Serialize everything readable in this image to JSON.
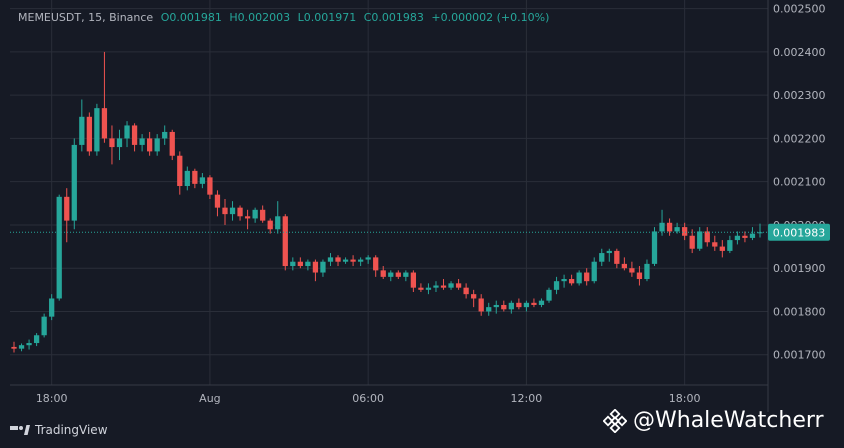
{
  "legend": {
    "symbol": "MEMEUSDT, 15, Binance",
    "open": "O0.001981",
    "high": "H0.002003",
    "low": "L0.001971",
    "close": "C0.001983",
    "change": "+0.000002 (+0.10%)"
  },
  "branding": {
    "tradingview": "TradingView",
    "watermark": "@WhaleWatcherr",
    "watermark_icon": "binance-icon"
  },
  "colors": {
    "background": "#161A25",
    "up": "#26A69A",
    "down": "#EF5350",
    "grid": "#2A2E39",
    "text": "#B2B5BE",
    "price_label_bg": "#26A69A"
  },
  "chart_data": {
    "type": "candlestick",
    "x_ticks": [
      "18:00",
      "Aug",
      "06:00",
      "12:00",
      "18:00"
    ],
    "y_ticks": [
      "0.002500",
      "0.002400",
      "0.002300",
      "0.002200",
      "0.002100",
      "0.002000",
      "0.001900",
      "0.001800",
      "0.001700"
    ],
    "ylim": [
      0.00163,
      0.00252
    ],
    "last_price": "0.001983",
    "last_price_value": 0.001983,
    "grid": true,
    "candles": [
      [
        0.001718,
        0.00173,
        0.001705,
        0.001714
      ],
      [
        0.001714,
        0.001726,
        0.001708,
        0.001722
      ],
      [
        0.001722,
        0.001735,
        0.001712,
        0.001727
      ],
      [
        0.001727,
        0.00175,
        0.00172,
        0.001745
      ],
      [
        0.001745,
        0.001795,
        0.00174,
        0.001788
      ],
      [
        0.001788,
        0.00184,
        0.00178,
        0.00183
      ],
      [
        0.00183,
        0.00207,
        0.001825,
        0.002065
      ],
      [
        0.002065,
        0.002085,
        0.00196,
        0.00201
      ],
      [
        0.00201,
        0.0022,
        0.00199,
        0.002185
      ],
      [
        0.002185,
        0.00229,
        0.00217,
        0.00225
      ],
      [
        0.00225,
        0.00226,
        0.00216,
        0.00217
      ],
      [
        0.00217,
        0.00228,
        0.00216,
        0.00227
      ],
      [
        0.00227,
        0.0024,
        0.00219,
        0.0022
      ],
      [
        0.0022,
        0.00223,
        0.00214,
        0.00218
      ],
      [
        0.00218,
        0.00222,
        0.00215,
        0.0022
      ],
      [
        0.0022,
        0.00224,
        0.00218,
        0.00223
      ],
      [
        0.00223,
        0.002235,
        0.00217,
        0.002185
      ],
      [
        0.002185,
        0.00221,
        0.00217,
        0.0022
      ],
      [
        0.0022,
        0.002215,
        0.00216,
        0.00217
      ],
      [
        0.00217,
        0.00221,
        0.00216,
        0.0022
      ],
      [
        0.0022,
        0.00223,
        0.002185,
        0.002215
      ],
      [
        0.002215,
        0.00222,
        0.00215,
        0.00216
      ],
      [
        0.00216,
        0.00217,
        0.00207,
        0.00209
      ],
      [
        0.00209,
        0.002135,
        0.00208,
        0.002125
      ],
      [
        0.002125,
        0.00213,
        0.002085,
        0.002095
      ],
      [
        0.002095,
        0.00212,
        0.002085,
        0.00211
      ],
      [
        0.00211,
        0.002115,
        0.00206,
        0.00207
      ],
      [
        0.00207,
        0.00208,
        0.00202,
        0.00204
      ],
      [
        0.00204,
        0.00206,
        0.002,
        0.002025
      ],
      [
        0.002025,
        0.002055,
        0.00201,
        0.00204
      ],
      [
        0.00204,
        0.002045,
        0.00201,
        0.00202
      ],
      [
        0.00202,
        0.002035,
        0.00199,
        0.002015
      ],
      [
        0.002015,
        0.00204,
        0.002005,
        0.002035
      ],
      [
        0.002035,
        0.002045,
        0.002005,
        0.00201
      ],
      [
        0.00201,
        0.002015,
        0.00198,
        0.00199
      ],
      [
        0.00199,
        0.002055,
        0.00198,
        0.00202
      ],
      [
        0.00202,
        0.002025,
        0.001895,
        0.001905
      ],
      [
        0.001905,
        0.001925,
        0.001895,
        0.001915
      ],
      [
        0.001915,
        0.001925,
        0.0019,
        0.001905
      ],
      [
        0.001905,
        0.00192,
        0.001895,
        0.001915
      ],
      [
        0.001915,
        0.00192,
        0.00187,
        0.00189
      ],
      [
        0.00189,
        0.00192,
        0.00188,
        0.001915
      ],
      [
        0.001915,
        0.001935,
        0.001905,
        0.001925
      ],
      [
        0.001925,
        0.00193,
        0.001905,
        0.001915
      ],
      [
        0.001915,
        0.001925,
        0.00191,
        0.00192
      ],
      [
        0.00192,
        0.00193,
        0.001905,
        0.001915
      ],
      [
        0.001915,
        0.001925,
        0.001905,
        0.00192
      ],
      [
        0.00192,
        0.00193,
        0.00191,
        0.001925
      ],
      [
        0.001925,
        0.00193,
        0.00188,
        0.001895
      ],
      [
        0.001895,
        0.001905,
        0.001875,
        0.00188
      ],
      [
        0.00188,
        0.001895,
        0.00187,
        0.00189
      ],
      [
        0.00189,
        0.001895,
        0.001875,
        0.00188
      ],
      [
        0.00188,
        0.001895,
        0.00187,
        0.00189
      ],
      [
        0.00189,
        0.001895,
        0.001845,
        0.001855
      ],
      [
        0.001855,
        0.001865,
        0.001845,
        0.00185
      ],
      [
        0.00185,
        0.001865,
        0.00184,
        0.001855
      ],
      [
        0.001855,
        0.00187,
        0.001845,
        0.00186
      ],
      [
        0.00186,
        0.001875,
        0.00185,
        0.001855
      ],
      [
        0.001855,
        0.00187,
        0.00185,
        0.001865
      ],
      [
        0.001865,
        0.001875,
        0.00185,
        0.001855
      ],
      [
        0.001855,
        0.001865,
        0.00183,
        0.00184
      ],
      [
        0.00184,
        0.00185,
        0.00181,
        0.00183
      ],
      [
        0.00183,
        0.00184,
        0.00179,
        0.0018
      ],
      [
        0.0018,
        0.00182,
        0.00179,
        0.00181
      ],
      [
        0.00181,
        0.001825,
        0.001795,
        0.001815
      ],
      [
        0.001815,
        0.001825,
        0.0018,
        0.001805
      ],
      [
        0.001805,
        0.001825,
        0.001795,
        0.00182
      ],
      [
        0.00182,
        0.00183,
        0.001805,
        0.00181
      ],
      [
        0.00181,
        0.001825,
        0.0018,
        0.00182
      ],
      [
        0.00182,
        0.00183,
        0.00181,
        0.001815
      ],
      [
        0.001815,
        0.00183,
        0.00181,
        0.001825
      ],
      [
        0.001825,
        0.001855,
        0.00182,
        0.00185
      ],
      [
        0.00185,
        0.00188,
        0.00184,
        0.00187
      ],
      [
        0.00187,
        0.001885,
        0.001855,
        0.001875
      ],
      [
        0.001875,
        0.001885,
        0.00186,
        0.001865
      ],
      [
        0.001865,
        0.001895,
        0.00186,
        0.00189
      ],
      [
        0.00189,
        0.0019,
        0.00186,
        0.00187
      ],
      [
        0.00187,
        0.001925,
        0.001865,
        0.001915
      ],
      [
        0.001915,
        0.001945,
        0.001905,
        0.001935
      ],
      [
        0.001935,
        0.001945,
        0.001915,
        0.00194
      ],
      [
        0.00194,
        0.001945,
        0.0019,
        0.00191
      ],
      [
        0.00191,
        0.001925,
        0.001895,
        0.0019
      ],
      [
        0.0019,
        0.001915,
        0.00188,
        0.00189
      ],
      [
        0.00189,
        0.001905,
        0.00186,
        0.001875
      ],
      [
        0.001875,
        0.00192,
        0.00187,
        0.00191
      ],
      [
        0.00191,
        0.001995,
        0.001905,
        0.001985
      ],
      [
        0.001985,
        0.002035,
        0.001975,
        0.002005
      ],
      [
        0.002005,
        0.002015,
        0.001975,
        0.001985
      ],
      [
        0.001985,
        0.002005,
        0.00198,
        0.001995
      ],
      [
        0.001995,
        0.002005,
        0.001965,
        0.001975
      ],
      [
        0.001975,
        0.00199,
        0.001935,
        0.001945
      ],
      [
        0.001945,
        0.001995,
        0.00194,
        0.001985
      ],
      [
        0.001985,
        0.001995,
        0.00195,
        0.00196
      ],
      [
        0.00196,
        0.001975,
        0.00194,
        0.00195
      ],
      [
        0.00195,
        0.001965,
        0.001925,
        0.00194
      ],
      [
        0.00194,
        0.001975,
        0.001935,
        0.001965
      ],
      [
        0.001965,
        0.001985,
        0.001955,
        0.001975
      ],
      [
        0.001975,
        0.001985,
        0.00196,
        0.00197
      ],
      [
        0.00197,
        0.001995,
        0.001965,
        0.00198
      ],
      [
        0.001981,
        0.002003,
        0.001971,
        0.001983
      ]
    ]
  }
}
